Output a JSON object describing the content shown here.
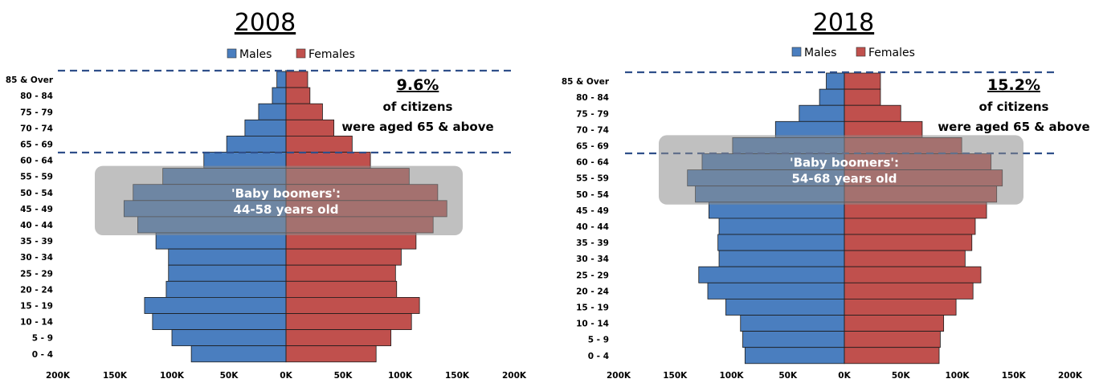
{
  "chart_data": [
    {
      "type": "bar",
      "orientation": "horizontal-population-pyramid",
      "title": "2008",
      "categories": [
        "85 & Over",
        "80 - 84",
        "75 - 79",
        "70 - 74",
        "65 - 69",
        "60 - 64",
        "55 - 59",
        "50 - 54",
        "45 - 49",
        "40 - 44",
        "35 - 39",
        "30 - 34",
        "25 - 29",
        "20 - 24",
        "15 - 19",
        "10 - 14",
        "5 - 9",
        "0 - 4"
      ],
      "series": [
        {
          "name": "Males",
          "color": "#4a7ebf",
          "values": [
            8000,
            12000,
            24000,
            36000,
            52000,
            72000,
            108000,
            134000,
            142000,
            130000,
            114000,
            103000,
            103000,
            105000,
            124000,
            117000,
            100000,
            83000
          ]
        },
        {
          "name": "Females",
          "color": "#c0504d",
          "values": [
            19000,
            21000,
            32000,
            42000,
            58000,
            74000,
            108000,
            133000,
            141000,
            129000,
            114000,
            101000,
            96000,
            97000,
            117000,
            110000,
            92000,
            79000
          ]
        }
      ],
      "xticks": [
        "200K",
        "150K",
        "100K",
        "50K",
        "0K",
        "50K",
        "100K",
        "150K",
        "200K"
      ],
      "xlim": [
        -200000,
        200000
      ],
      "legend": "top-center",
      "annotation": {
        "percent": "9.6%",
        "line1": "of citizens",
        "line2": "were aged 65 & above"
      },
      "boomers": {
        "line1": "'Baby boomers':",
        "line2": "44-58 years old",
        "ages": [
          "55 - 59",
          "50 - 54",
          "45 - 49",
          "40 - 44"
        ]
      }
    },
    {
      "type": "bar",
      "orientation": "horizontal-population-pyramid",
      "title": "2018",
      "categories": [
        "85 & Over",
        "80 - 84",
        "75 - 79",
        "70 - 74",
        "65 - 69",
        "60 - 64",
        "55 - 59",
        "50 - 54",
        "45 - 49",
        "40 - 44",
        "35 - 39",
        "30 - 34",
        "25 - 29",
        "20 - 24",
        "15 - 19",
        "10 - 14",
        "5 - 9",
        "0 - 4"
      ],
      "series": [
        {
          "name": "Males",
          "color": "#4a7ebf",
          "values": [
            16000,
            22000,
            40000,
            61000,
            99000,
            126000,
            139000,
            132000,
            120000,
            111000,
            112000,
            111000,
            129000,
            121000,
            105000,
            92000,
            90000,
            88000
          ]
        },
        {
          "name": "Females",
          "color": "#c0504d",
          "values": [
            32000,
            32000,
            50000,
            69000,
            104000,
            130000,
            140000,
            135000,
            126000,
            116000,
            113000,
            107000,
            121000,
            114000,
            99000,
            88000,
            85000,
            84000
          ]
        }
      ],
      "xticks": [
        "200K",
        "150K",
        "100K",
        "50K",
        "0K",
        "50K",
        "100K",
        "150K",
        "200K"
      ],
      "xlim": [
        -200000,
        200000
      ],
      "legend": "top-center",
      "annotation": {
        "percent": "15.2%",
        "line1": "of citizens",
        "line2": "were aged 65 & above"
      },
      "boomers": {
        "line1": "'Baby boomers':",
        "line2": "54-68 years old",
        "ages": [
          "65 - 69",
          "60 - 64",
          "55 - 59",
          "50 - 54"
        ]
      }
    }
  ]
}
